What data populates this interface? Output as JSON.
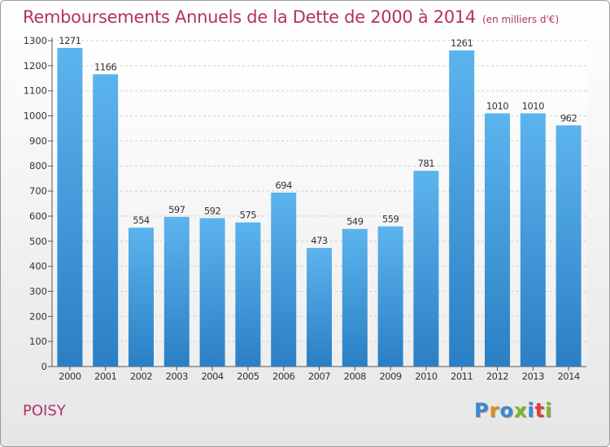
{
  "chart_data": {
    "type": "bar",
    "title": "Remboursements Annuels de la Dette de 2000 à 2014",
    "subtitle": "(en milliers d'€)",
    "categories": [
      "2000",
      "2001",
      "2002",
      "2003",
      "2004",
      "2005",
      "2006",
      "2007",
      "2008",
      "2009",
      "2010",
      "2011",
      "2012",
      "2013",
      "2014"
    ],
    "values": [
      1271,
      1166,
      554,
      597,
      592,
      575,
      694,
      473,
      549,
      559,
      781,
      1261,
      1010,
      1010,
      962
    ],
    "ylim": [
      0,
      1300
    ],
    "yticks": [
      0,
      100,
      200,
      300,
      400,
      500,
      600,
      700,
      800,
      900,
      1000,
      1100,
      1200,
      1300
    ],
    "grid": true,
    "bar_color": "#3e97da"
  },
  "footer": {
    "place": "POISY",
    "logo": [
      "P",
      "r",
      "o",
      "x",
      "i",
      "t",
      "i"
    ],
    "logo_colors": [
      "#3b88d0",
      "#e8891a",
      "#3b88d0",
      "#7ab82a",
      "#3b88d0",
      "#e23d3d",
      "#7ab82a"
    ]
  }
}
